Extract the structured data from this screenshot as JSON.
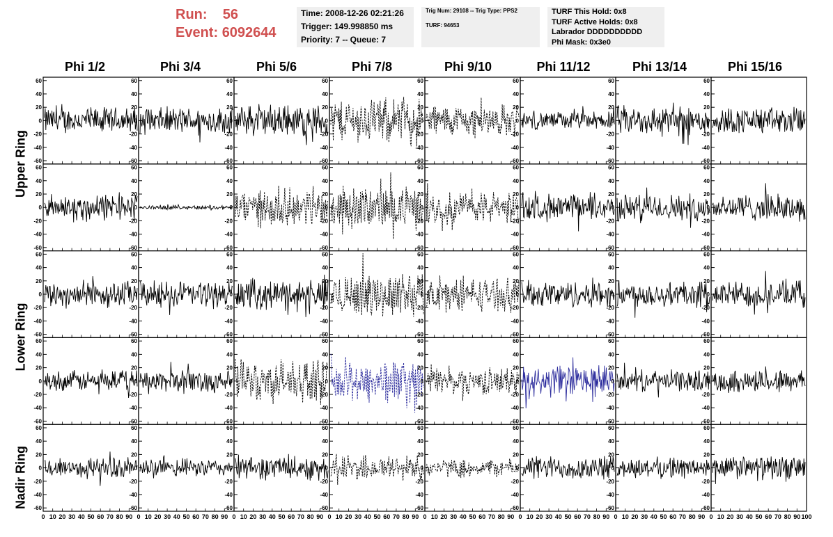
{
  "header": {
    "run_label": "Run:",
    "run_value": "56",
    "event_label": "Event:",
    "event_value": "6092644",
    "time": "Time: 2008-12-26 02:21:26",
    "trigger": "Trigger: 149.998850 ms",
    "priority": "Priority: 7 -- Queue: 7",
    "trig_info": "Trig Num: 29108 -- Trig Type: PPS2",
    "turf": "TURF: 94653",
    "turf_hold": "TURF This Hold: 0x8",
    "turf_active": "TURF Active Holds: 0x8",
    "labrador": "Labrador DDDDDDDDDD",
    "phi_mask": "Phi Mask: 0x3e0"
  },
  "columns": [
    "Phi 1/2",
    "Phi 3/4",
    "Phi 5/6",
    "Phi 7/8",
    "Phi 9/10",
    "Phi 11/12",
    "Phi 13/14",
    "Phi 15/16"
  ],
  "rows": [
    "Upper Ring",
    "Lower Ring",
    "Nadir Ring"
  ],
  "colors": {
    "trace": "#000000",
    "highlight": "#2a2a9c",
    "run_text": "#d05050",
    "info_bg": "#efefef"
  },
  "chart_data": {
    "type": "line",
    "x_ticks": [
      "0",
      "10",
      "20",
      "30",
      "40",
      "50",
      "60",
      "70",
      "80",
      "90",
      "100"
    ],
    "y_ticks": [
      "60",
      "40",
      "20",
      "0",
      "-20",
      "-40",
      "-60"
    ],
    "xlim": [
      0,
      100
    ],
    "ylim": [
      -65,
      65
    ],
    "panel_rows": 5,
    "panel_cols": 8,
    "amplitude": [
      [
        18,
        18,
        22,
        30,
        22,
        12,
        20,
        18
      ],
      [
        18,
        3,
        25,
        28,
        22,
        18,
        18,
        18
      ],
      [
        18,
        18,
        20,
        30,
        22,
        18,
        18,
        18
      ],
      [
        14,
        16,
        28,
        30,
        18,
        22,
        14,
        16
      ],
      [
        14,
        12,
        16,
        18,
        12,
        16,
        14,
        16
      ]
    ],
    "style": [
      [
        "solid",
        "solid",
        "solid",
        "dashed",
        "dashed",
        "solid",
        "solid",
        "solid"
      ],
      [
        "solid",
        "solid",
        "dashed",
        "dashed",
        "dashed",
        "solid",
        "solid",
        "solid"
      ],
      [
        "solid",
        "solid",
        "solid",
        "dashed",
        "dashed",
        "solid",
        "solid",
        "solid"
      ],
      [
        "solid",
        "solid",
        "dashed",
        "dashed-blue",
        "dashed",
        "solid-blue",
        "solid",
        "solid"
      ],
      [
        "solid",
        "solid",
        "solid",
        "dashed",
        "dashed",
        "solid",
        "solid",
        "solid"
      ]
    ]
  }
}
